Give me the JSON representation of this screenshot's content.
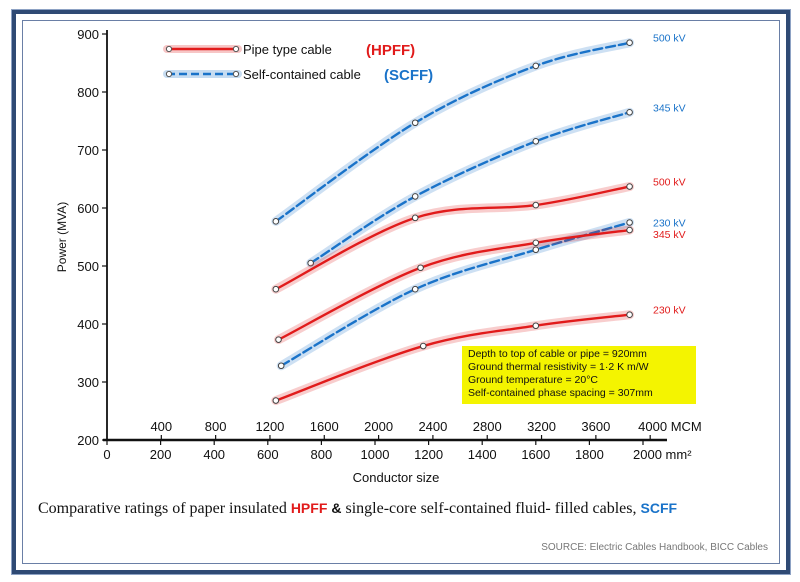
{
  "chart_data": {
    "type": "line",
    "ylabel": "Power (MVA)",
    "xlabel": "Conductor size",
    "ylim": [
      200,
      900
    ],
    "y_ticks": [
      "200",
      "300",
      "400",
      "500",
      "600",
      "700",
      "800",
      "900"
    ],
    "x_mm2_ticks": [
      "0",
      "200",
      "400",
      "600",
      "800",
      "1000",
      "1200",
      "1400",
      "1600",
      "1800",
      "2000 mm²"
    ],
    "x_mcm_ticks": [
      "400",
      "800",
      "1200",
      "1600",
      "2000",
      "2400",
      "2800",
      "3200",
      "3600",
      "4000 MCM"
    ],
    "x_unit": "mm²",
    "xlim": [
      0,
      2000
    ],
    "grid": false,
    "legend_position": "top-left",
    "legend": [
      {
        "label": "Pipe type cable",
        "tag": "(HPFF)",
        "color": "#e11b1b",
        "style": "solid"
      },
      {
        "label": "Self-contained cable",
        "tag": "(SCFF)",
        "color": "#1a73c9",
        "style": "dashed"
      }
    ],
    "series": [
      {
        "name": "500 kV",
        "cable": "SCFF",
        "color": "#1a73c9",
        "x": [
          630,
          1150,
          1600,
          1950
        ],
        "y": [
          577,
          747,
          845,
          885
        ]
      },
      {
        "name": "345 kV",
        "cable": "SCFF",
        "color": "#1a73c9",
        "x": [
          760,
          1150,
          1600,
          1950
        ],
        "y": [
          505,
          620,
          715,
          765
        ]
      },
      {
        "name": "500 kV",
        "cable": "HPFF",
        "color": "#e11b1b",
        "x": [
          630,
          1150,
          1600,
          1950
        ],
        "y": [
          460,
          583,
          605,
          637
        ]
      },
      {
        "name": "230 kV",
        "cable": "SCFF",
        "color": "#1a73c9",
        "x": [
          650,
          1150,
          1600,
          1950
        ],
        "y": [
          328,
          460,
          528,
          575
        ]
      },
      {
        "name": "345 kV",
        "cable": "HPFF",
        "color": "#e11b1b",
        "x": [
          640,
          1170,
          1600,
          1950
        ],
        "y": [
          373,
          497,
          540,
          562
        ]
      },
      {
        "name": "230 kV",
        "cable": "HPFF",
        "color": "#e11b1b",
        "x": [
          630,
          1180,
          1600,
          1950
        ],
        "y": [
          268,
          362,
          397,
          416
        ]
      }
    ],
    "annotation": [
      "Depth to top of cable or pipe = 920mm",
      "Ground thermal resistivity = 1·2 K m/W",
      "Ground temperature = 20°C",
      "Self-contained phase spacing = 307mm"
    ]
  },
  "caption": {
    "prefix": "Comparative ratings of paper insulated",
    "hpff": "HPFF",
    "amp": "&",
    "middle": "single-core self-contained fluid- filled cables,",
    "scff": "SCFF"
  },
  "source": "SOURCE: Electric Cables Handbook, BICC Cables"
}
